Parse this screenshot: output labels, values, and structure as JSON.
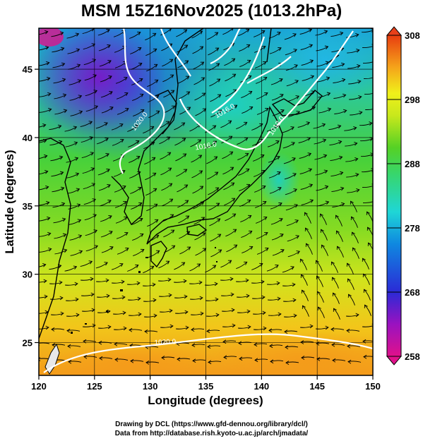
{
  "title": "MSM 15Z16Nov2025 (1013.2hPa)",
  "xaxis": {
    "label": "Longitude (degrees)",
    "ticks": [
      "120",
      "125",
      "130",
      "135",
      "140",
      "145",
      "150"
    ],
    "range": [
      120,
      150
    ]
  },
  "yaxis": {
    "label": "Latitude  (degrees)",
    "ticks": [
      "25",
      "30",
      "35",
      "40",
      "45"
    ],
    "range": [
      22.6,
      48
    ]
  },
  "colorbar": {
    "ticks": [
      "258",
      "268",
      "278",
      "288",
      "298",
      "308"
    ],
    "range": [
      258,
      308
    ],
    "colors": [
      "#e0118b",
      "#7a14c8",
      "#2b2ad6",
      "#0f7de0",
      "#1fd6d6",
      "#38d66a",
      "#55d125",
      "#a6e01f",
      "#f0f01a",
      "#f5b21a",
      "#f07a1a",
      "#e83d10"
    ]
  },
  "contours": [
    {
      "label": "1020.0"
    },
    {
      "label": "1016.0"
    },
    {
      "label": "1016.0"
    },
    {
      "label": "1012.0"
    },
    {
      "label": "1020.0"
    }
  ],
  "credits": [
    "Drawing by DCL (https://www.gfd-dennou.org/library/dcl/)",
    "Data from http://database.rish.kyoto-u.ac.jp/arch/jmadata/"
  ],
  "colors": {
    "land_line": "#000000",
    "contour": "#ffffff",
    "streamline": "#000000"
  }
}
